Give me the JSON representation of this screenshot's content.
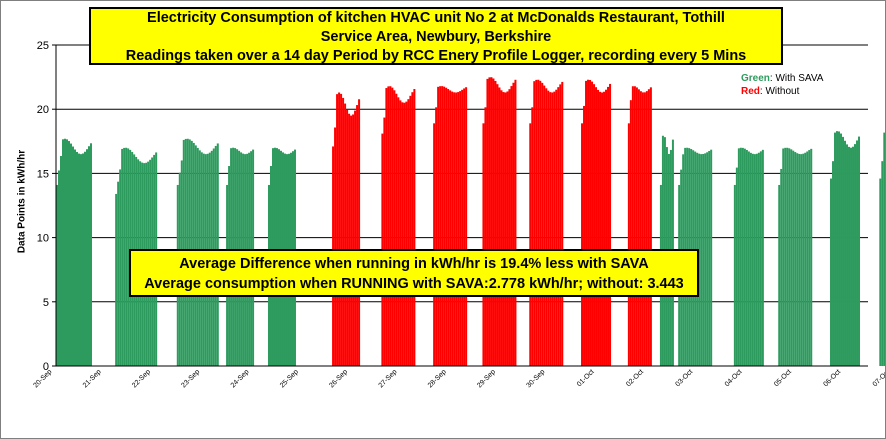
{
  "chart_title": {
    "line1": "Electricity  Consumption of  kitchen HVAC unit No 2 at McDonalds Restaurant, Tothill",
    "line2": "Service Area, Newbury, Berkshire",
    "line3": "Readings taken over a 14 day Period by RCC Enery Profile Logger, recording every 5 Mins"
  },
  "annotation": {
    "line1": "Average Difference when running in kWh/hr is 19.4% less with SAVA",
    "line2": "Average consumption when RUNNING with SAVA:2.778 kWh/hr; without: 3.443"
  },
  "legend": {
    "green_word": "Green",
    "green_rest": ": With SAVA",
    "red_word": "Red",
    "red_rest": ": Without"
  },
  "colors": {
    "with_sava": "#2e9b5e",
    "without_sava": "#ff0000",
    "title_bg": "#ffff00"
  },
  "chart_data": {
    "type": "bar",
    "title": "Electricity  Consumption of  kitchen HVAC unit No 2 at McDonalds Restaurant, Tothill Service Area, Newbury, Berkshire",
    "xlabel": "",
    "ylabel": "Data Points in kWh/hr",
    "ylim": [
      0,
      25
    ],
    "yticks": [
      0,
      5,
      10,
      15,
      20,
      25
    ],
    "grid": true,
    "legend_position": "top-right",
    "x_tick_labels": [
      "20-Sep",
      "21-Sep",
      "22-Sep",
      "23-Sep",
      "24-Sep",
      "25-Sep",
      "26-Sep",
      "27-Sep",
      "28-Sep",
      "29-Sep",
      "30-Sep",
      "01-Oct",
      "02-Oct",
      "03-Oct",
      "04-Oct",
      "05-Oct",
      "06-Oct",
      "07-Oct"
    ],
    "series": [
      {
        "name": "With SAVA",
        "color": "#2e9b5e",
        "blocks": [
          {
            "start": 0.0,
            "end": 0.72,
            "low": 16.5,
            "high": 17.7
          },
          {
            "start": 1.2,
            "end": 2.05,
            "low": 15.8,
            "high": 17.0
          },
          {
            "start": 2.45,
            "end": 3.3,
            "low": 16.5,
            "high": 17.7
          },
          {
            "start": 3.45,
            "end": 4.0,
            "low": 16.5,
            "high": 17.0
          },
          {
            "start": 4.3,
            "end": 4.85,
            "low": 16.5,
            "high": 17.0
          },
          {
            "start": 12.25,
            "end": 12.5,
            "low": 16.5,
            "high": 18.0
          },
          {
            "start": 12.62,
            "end": 13.3,
            "low": 16.5,
            "high": 17.0
          },
          {
            "start": 13.75,
            "end": 14.35,
            "low": 16.5,
            "high": 17.0
          },
          {
            "start": 14.65,
            "end": 15.3,
            "low": 16.5,
            "high": 17.0
          },
          {
            "start": 15.7,
            "end": 16.3,
            "low": 17.0,
            "high": 18.3
          },
          {
            "start": 16.7,
            "end": 17.3,
            "low": 17.0,
            "high": 18.3
          },
          {
            "start": 17.8,
            "end": 18.3,
            "low": 16.5,
            "high": 17.7
          }
        ]
      },
      {
        "name": "Without SAVA",
        "color": "#ff0000",
        "blocks": [
          {
            "start": 5.6,
            "end": 6.15,
            "low": 19.5,
            "high": 21.3
          },
          {
            "start": 6.6,
            "end": 7.25,
            "low": 20.5,
            "high": 21.8
          },
          {
            "start": 7.65,
            "end": 8.3,
            "low": 21.3,
            "high": 21.8
          },
          {
            "start": 8.65,
            "end": 9.3,
            "low": 21.3,
            "high": 22.5
          },
          {
            "start": 9.6,
            "end": 10.25,
            "low": 21.3,
            "high": 22.3
          },
          {
            "start": 10.65,
            "end": 11.25,
            "low": 21.3,
            "high": 22.3
          },
          {
            "start": 11.6,
            "end": 12.05,
            "low": 21.3,
            "high": 21.8
          }
        ]
      }
    ]
  }
}
